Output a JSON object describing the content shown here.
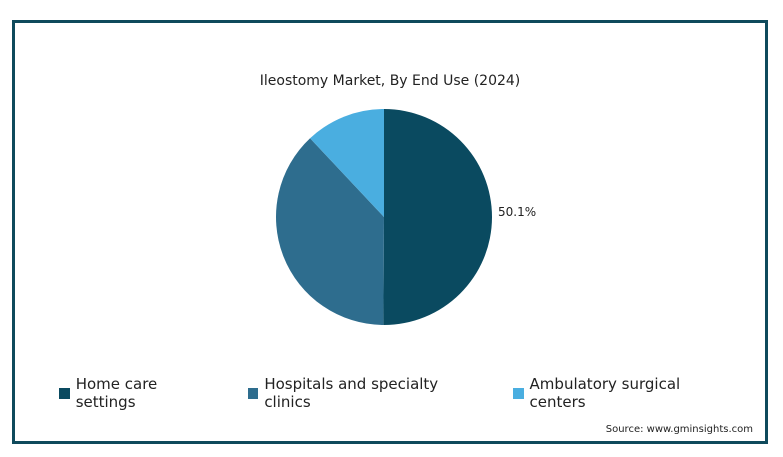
{
  "chart_data": {
    "type": "pie",
    "title": "Ileostomy Market, By End Use (2024)",
    "slices": [
      {
        "name": "Home care settings",
        "value": 50.1,
        "label": "50.1%",
        "color": "#0a4a60"
      },
      {
        "name": "Hospitals and specialty clinics",
        "value": 37.9,
        "label": "",
        "color": "#2e6d8e"
      },
      {
        "name": "Ambulatory surgical centers",
        "value": 12.0,
        "label": "",
        "color": "#4aaee0"
      }
    ],
    "legend_position": "bottom"
  },
  "source": "Source: www.gminsights.com"
}
